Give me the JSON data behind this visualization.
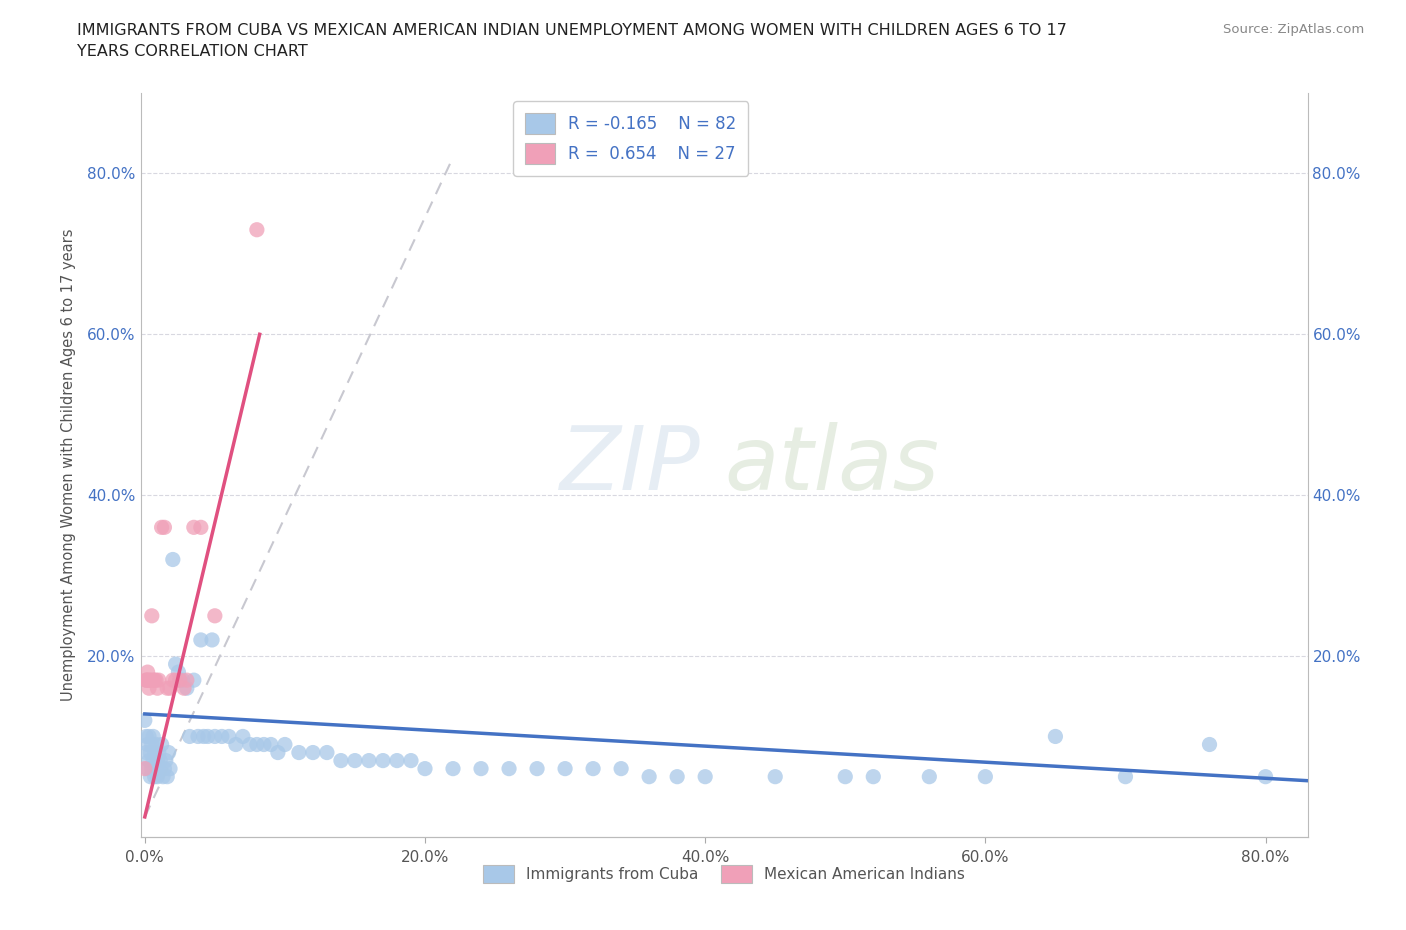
{
  "title_line1": "IMMIGRANTS FROM CUBA VS MEXICAN AMERICAN INDIAN UNEMPLOYMENT AMONG WOMEN WITH CHILDREN AGES 6 TO 17",
  "title_line2": "YEARS CORRELATION CHART",
  "source": "Source: ZipAtlas.com",
  "ylabel": "Unemployment Among Women with Children Ages 6 to 17 years",
  "xlim": [
    -0.003,
    0.83
  ],
  "ylim": [
    -0.025,
    0.9
  ],
  "xticks": [
    0.0,
    0.2,
    0.4,
    0.6,
    0.8
  ],
  "xtick_labels": [
    "0.0%",
    "20.0%",
    "40.0%",
    "60.0%",
    "80.0%"
  ],
  "ytick_vals": [
    0.0,
    0.2,
    0.4,
    0.6,
    0.8
  ],
  "ytick_labels": [
    "",
    "20.0%",
    "40.0%",
    "60.0%",
    "80.0%"
  ],
  "legend_r1": "R = -0.165",
  "legend_n1": "N = 82",
  "legend_r2": "R =  0.654",
  "legend_n2": "N = 27",
  "color_blue": "#a8c8e8",
  "color_pink": "#f0a0b8",
  "color_blue_line": "#4472c4",
  "color_pink_line": "#e05080",
  "color_legend_text": "#4472c4",
  "color_right_tick": "#4472c4",
  "blue_line_x": [
    0.0,
    0.83
  ],
  "blue_line_y": [
    0.128,
    0.045
  ],
  "pink_line_x": [
    0.0,
    0.082
  ],
  "pink_line_y": [
    0.0,
    0.6
  ],
  "dash_line_x": [
    0.0,
    0.22
  ],
  "dash_line_y": [
    0.0,
    0.82
  ],
  "blue_scatter_x": [
    0.0,
    0.001,
    0.001,
    0.002,
    0.002,
    0.003,
    0.003,
    0.004,
    0.004,
    0.005,
    0.005,
    0.006,
    0.006,
    0.007,
    0.007,
    0.008,
    0.008,
    0.009,
    0.009,
    0.01,
    0.01,
    0.011,
    0.012,
    0.013,
    0.014,
    0.015,
    0.016,
    0.017,
    0.018,
    0.02,
    0.022,
    0.024,
    0.025,
    0.027,
    0.03,
    0.032,
    0.035,
    0.038,
    0.04,
    0.042,
    0.045,
    0.048,
    0.05,
    0.055,
    0.06,
    0.065,
    0.07,
    0.075,
    0.08,
    0.085,
    0.09,
    0.095,
    0.1,
    0.11,
    0.12,
    0.13,
    0.14,
    0.15,
    0.16,
    0.17,
    0.18,
    0.19,
    0.2,
    0.22,
    0.24,
    0.26,
    0.28,
    0.3,
    0.32,
    0.34,
    0.36,
    0.38,
    0.4,
    0.45,
    0.5,
    0.52,
    0.56,
    0.6,
    0.65,
    0.7,
    0.76,
    0.8
  ],
  "blue_scatter_y": [
    0.12,
    0.1,
    0.08,
    0.09,
    0.06,
    0.07,
    0.1,
    0.05,
    0.08,
    0.09,
    0.06,
    0.07,
    0.1,
    0.05,
    0.08,
    0.06,
    0.09,
    0.07,
    0.05,
    0.08,
    0.06,
    0.07,
    0.09,
    0.05,
    0.06,
    0.07,
    0.05,
    0.08,
    0.06,
    0.32,
    0.19,
    0.18,
    0.17,
    0.17,
    0.16,
    0.1,
    0.17,
    0.1,
    0.22,
    0.1,
    0.1,
    0.22,
    0.1,
    0.1,
    0.1,
    0.09,
    0.1,
    0.09,
    0.09,
    0.09,
    0.09,
    0.08,
    0.09,
    0.08,
    0.08,
    0.08,
    0.07,
    0.07,
    0.07,
    0.07,
    0.07,
    0.07,
    0.06,
    0.06,
    0.06,
    0.06,
    0.06,
    0.06,
    0.06,
    0.06,
    0.05,
    0.05,
    0.05,
    0.05,
    0.05,
    0.05,
    0.05,
    0.05,
    0.1,
    0.05,
    0.09,
    0.05
  ],
  "pink_scatter_x": [
    0.0,
    0.001,
    0.001,
    0.002,
    0.002,
    0.003,
    0.003,
    0.004,
    0.005,
    0.006,
    0.007,
    0.008,
    0.009,
    0.01,
    0.012,
    0.014,
    0.016,
    0.018,
    0.02,
    0.022,
    0.025,
    0.028,
    0.03,
    0.035,
    0.04,
    0.05,
    0.08
  ],
  "pink_scatter_y": [
    0.06,
    0.17,
    0.17,
    0.17,
    0.18,
    0.17,
    0.16,
    0.17,
    0.25,
    0.17,
    0.17,
    0.17,
    0.16,
    0.17,
    0.36,
    0.36,
    0.16,
    0.16,
    0.17,
    0.17,
    0.17,
    0.16,
    0.17,
    0.36,
    0.36,
    0.25,
    0.73
  ]
}
